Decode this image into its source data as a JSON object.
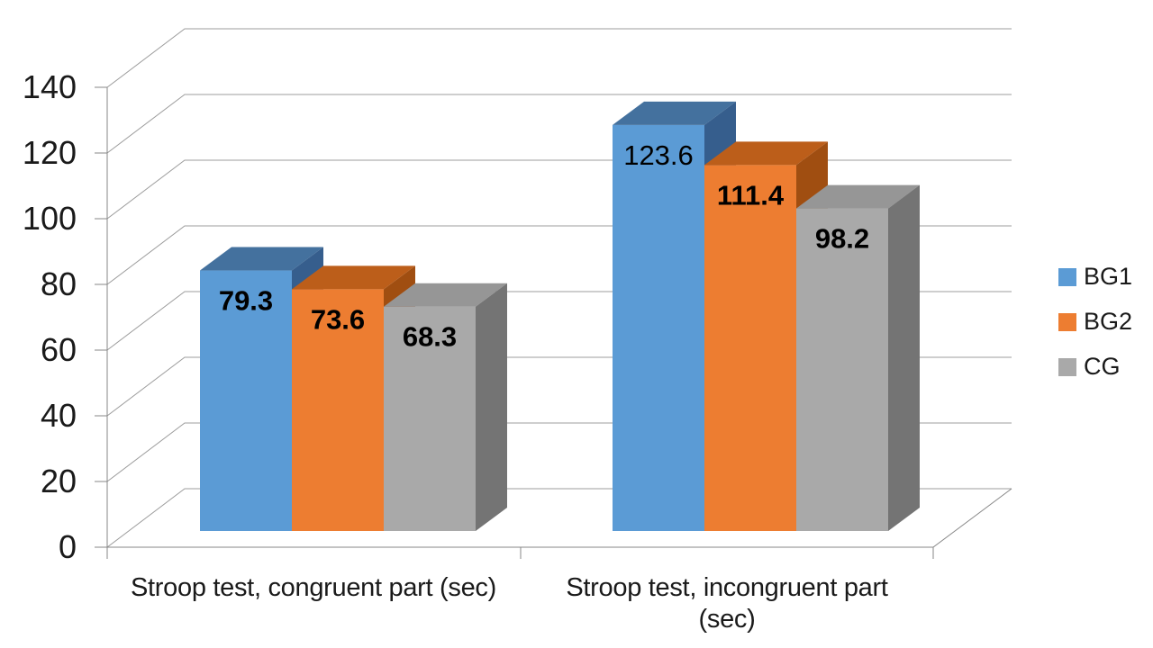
{
  "chart_data": {
    "type": "bar",
    "style": "3d-clustered-column",
    "categories": [
      "Stroop test, congruent part (sec)",
      "Stroop test, incongruent part (sec)"
    ],
    "categories_display": [
      [
        "Stroop test, congruent part (sec)"
      ],
      [
        "Stroop test, incongruent part",
        "(sec)"
      ]
    ],
    "series": [
      {
        "name": "BG1",
        "values": [
          79.3,
          123.6
        ],
        "color_front": "#5B9BD5",
        "color_top": "#44719E",
        "color_side": "#365E8D",
        "label_bold": [
          true,
          false
        ]
      },
      {
        "name": "BG2",
        "values": [
          73.6,
          111.4
        ],
        "color_front": "#ED7D31",
        "color_top": "#BC5E1A",
        "color_side": "#A04E11",
        "label_bold": [
          true,
          true
        ]
      },
      {
        "name": "CG",
        "values": [
          68.3,
          98.2
        ],
        "color_front": "#A9A9A9",
        "color_top": "#969696",
        "color_side": "#747474",
        "label_bold": [
          true,
          true
        ]
      }
    ],
    "data_labels": [
      [
        "79.3",
        "123.6"
      ],
      [
        "73.6",
        "111.4"
      ],
      [
        "68.3",
        "98.2"
      ]
    ],
    "ylim": [
      0,
      140
    ],
    "ytick_step": 20,
    "ytick_labels": [
      "0",
      "20",
      "40",
      "60",
      "80",
      "100",
      "120",
      "140"
    ],
    "grid": true,
    "legend_position": "right",
    "colors": {
      "grid_line": "#9c9c9c",
      "axis_line": "#878787",
      "axis_text": "#1a1a1a",
      "data_label_text": "#000000",
      "background": "#ffffff"
    }
  }
}
